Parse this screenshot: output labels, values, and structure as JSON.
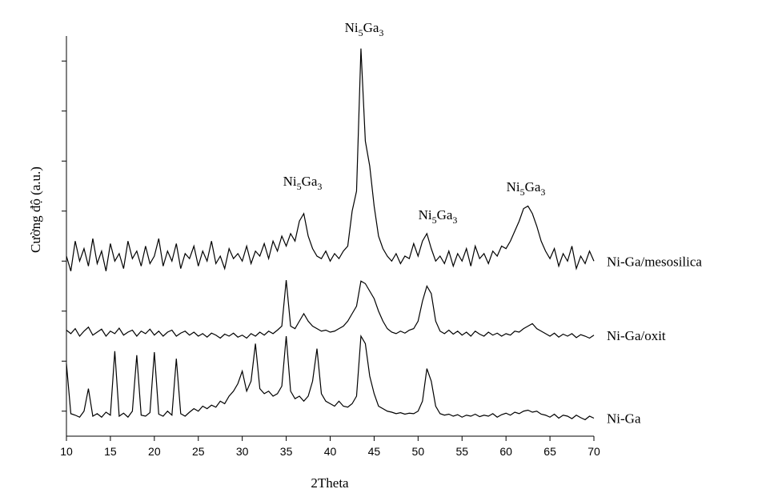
{
  "chart_data": {
    "type": "line",
    "xlabel": "2Theta",
    "ylabel": "Cường độ (a.u.)",
    "xlim": [
      10,
      70
    ],
    "xticks": [
      10,
      15,
      20,
      25,
      30,
      35,
      40,
      45,
      50,
      55,
      60,
      65,
      70
    ],
    "ylim": [
      0,
      8
    ],
    "yticks": [
      0.5,
      1.5,
      2.5,
      3.5,
      4.5,
      5.5,
      6.5,
      7.5
    ],
    "annotations": [
      "Ni5Ga3",
      "Ni5Ga3",
      "Ni5Ga3",
      "Ni5Ga3"
    ],
    "x": [
      10,
      10.5,
      11,
      11.5,
      12,
      12.5,
      13,
      13.5,
      14,
      14.5,
      15,
      15.5,
      16,
      16.5,
      17,
      17.5,
      18,
      18.5,
      19,
      19.5,
      20,
      20.5,
      21,
      21.5,
      22,
      22.5,
      23,
      23.5,
      24,
      24.5,
      25,
      25.5,
      26,
      26.5,
      27,
      27.5,
      28,
      28.5,
      29,
      29.5,
      30,
      30.5,
      31,
      31.5,
      32,
      32.5,
      33,
      33.5,
      34,
      34.5,
      35,
      35.5,
      36,
      36.5,
      37,
      37.5,
      38,
      38.5,
      39,
      39.5,
      40,
      40.5,
      41,
      41.5,
      42,
      42.5,
      43,
      43.5,
      44,
      44.5,
      45,
      45.5,
      46,
      46.5,
      47,
      47.5,
      48,
      48.5,
      49,
      49.5,
      50,
      50.5,
      51,
      51.5,
      52,
      52.5,
      53,
      53.5,
      54,
      54.5,
      55,
      55.5,
      56,
      56.5,
      57,
      57.5,
      58,
      58.5,
      59,
      59.5,
      60,
      60.5,
      61,
      61.5,
      62,
      62.5,
      63,
      63.5,
      64,
      64.5,
      65,
      65.5,
      66,
      66.5,
      67,
      67.5,
      68,
      68.5,
      69,
      69.5,
      70
    ],
    "series": [
      {
        "name": "Ni-Ga/mesosilica",
        "color": "#000000",
        "values": [
          3.6,
          3.3,
          3.9,
          3.5,
          3.75,
          3.4,
          3.95,
          3.45,
          3.7,
          3.3,
          3.85,
          3.5,
          3.65,
          3.35,
          3.9,
          3.55,
          3.7,
          3.4,
          3.8,
          3.45,
          3.6,
          3.95,
          3.4,
          3.7,
          3.5,
          3.85,
          3.35,
          3.65,
          3.55,
          3.8,
          3.4,
          3.7,
          3.5,
          3.9,
          3.45,
          3.6,
          3.35,
          3.75,
          3.55,
          3.65,
          3.5,
          3.8,
          3.45,
          3.7,
          3.6,
          3.85,
          3.55,
          3.9,
          3.7,
          4.0,
          3.8,
          4.05,
          3.9,
          4.3,
          4.45,
          4.0,
          3.75,
          3.6,
          3.55,
          3.7,
          3.5,
          3.65,
          3.55,
          3.7,
          3.8,
          4.5,
          4.9,
          7.75,
          5.9,
          5.4,
          4.6,
          4.0,
          3.75,
          3.6,
          3.5,
          3.65,
          3.45,
          3.6,
          3.55,
          3.85,
          3.6,
          3.9,
          4.05,
          3.75,
          3.5,
          3.6,
          3.45,
          3.7,
          3.4,
          3.65,
          3.5,
          3.75,
          3.4,
          3.8,
          3.55,
          3.65,
          3.45,
          3.7,
          3.6,
          3.8,
          3.75,
          3.9,
          4.1,
          4.3,
          4.55,
          4.6,
          4.45,
          4.2,
          3.9,
          3.7,
          3.55,
          3.75,
          3.4,
          3.65,
          3.5,
          3.8,
          3.35,
          3.6,
          3.45,
          3.7,
          3.5
        ]
      },
      {
        "name": "Ni-Ga/oxit",
        "color": "#000000",
        "values": [
          2.12,
          2.05,
          2.15,
          2.0,
          2.1,
          2.18,
          2.02,
          2.08,
          2.14,
          2.0,
          2.1,
          2.05,
          2.16,
          2.02,
          2.08,
          2.12,
          2.0,
          2.1,
          2.05,
          2.14,
          2.02,
          2.1,
          2.0,
          2.08,
          2.12,
          2.0,
          2.06,
          2.1,
          2.02,
          2.08,
          2.0,
          2.05,
          1.98,
          2.06,
          2.02,
          1.96,
          2.04,
          2.0,
          2.06,
          1.98,
          2.02,
          1.96,
          2.05,
          2.0,
          2.08,
          2.02,
          2.1,
          2.05,
          2.12,
          2.2,
          3.12,
          2.2,
          2.15,
          2.3,
          2.45,
          2.3,
          2.2,
          2.15,
          2.1,
          2.12,
          2.08,
          2.1,
          2.15,
          2.2,
          2.3,
          2.45,
          2.6,
          3.1,
          3.05,
          2.9,
          2.75,
          2.5,
          2.3,
          2.15,
          2.08,
          2.05,
          2.1,
          2.06,
          2.12,
          2.15,
          2.3,
          2.7,
          3.0,
          2.85,
          2.3,
          2.1,
          2.05,
          2.12,
          2.04,
          2.1,
          2.02,
          2.08,
          2.0,
          2.1,
          2.04,
          2.0,
          2.08,
          2.02,
          2.06,
          2.0,
          2.05,
          2.02,
          2.1,
          2.08,
          2.15,
          2.2,
          2.25,
          2.15,
          2.1,
          2.05,
          2.0,
          2.06,
          1.98,
          2.04,
          2.0,
          2.05,
          1.97,
          2.03,
          2.0,
          1.96,
          2.02
        ]
      },
      {
        "name": "Ni-Ga",
        "color": "#000000",
        "values": [
          1.45,
          0.45,
          0.42,
          0.38,
          0.5,
          0.95,
          0.4,
          0.45,
          0.38,
          0.48,
          0.42,
          1.7,
          0.4,
          0.46,
          0.38,
          0.5,
          1.62,
          0.42,
          0.4,
          0.47,
          1.68,
          0.44,
          0.4,
          0.5,
          0.42,
          1.55,
          0.45,
          0.4,
          0.48,
          0.55,
          0.5,
          0.6,
          0.55,
          0.62,
          0.58,
          0.7,
          0.65,
          0.8,
          0.9,
          1.05,
          1.3,
          0.9,
          1.1,
          1.85,
          0.95,
          0.85,
          0.9,
          0.8,
          0.85,
          1.0,
          2.0,
          0.9,
          0.75,
          0.8,
          0.7,
          0.8,
          1.1,
          1.75,
          0.85,
          0.7,
          0.65,
          0.6,
          0.7,
          0.6,
          0.58,
          0.65,
          0.8,
          2.0,
          1.85,
          1.2,
          0.85,
          0.6,
          0.55,
          0.5,
          0.48,
          0.45,
          0.47,
          0.44,
          0.46,
          0.45,
          0.5,
          0.7,
          1.35,
          1.1,
          0.6,
          0.45,
          0.42,
          0.44,
          0.4,
          0.43,
          0.38,
          0.42,
          0.4,
          0.44,
          0.39,
          0.42,
          0.4,
          0.45,
          0.38,
          0.43,
          0.46,
          0.42,
          0.48,
          0.45,
          0.5,
          0.52,
          0.48,
          0.5,
          0.44,
          0.42,
          0.38,
          0.44,
          0.36,
          0.42,
          0.4,
          0.35,
          0.42,
          0.37,
          0.33,
          0.4,
          0.36
        ]
      }
    ]
  }
}
